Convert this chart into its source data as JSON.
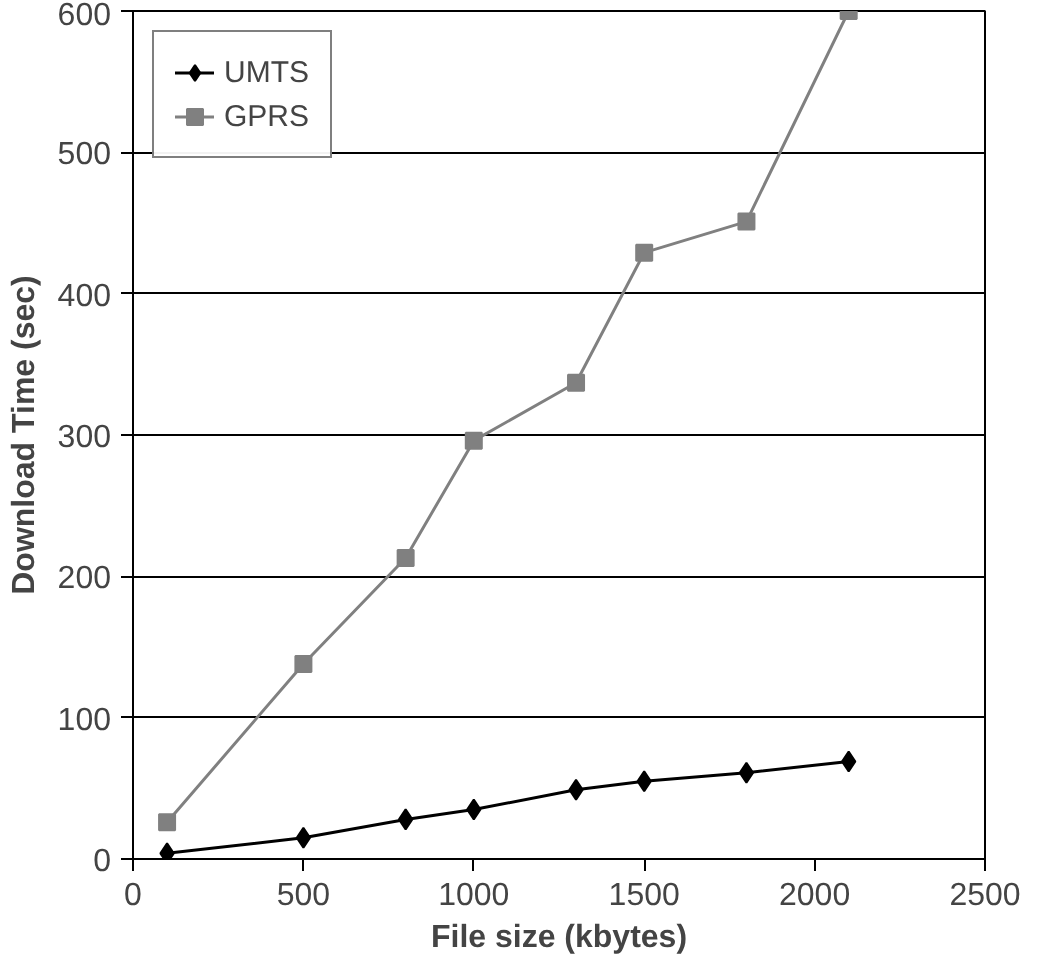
{
  "chart_data": {
    "type": "line",
    "xlabel": "File size (kbytes)",
    "ylabel": "Download Time (sec)",
    "x": [
      100,
      500,
      800,
      1000,
      1300,
      1500,
      1800,
      2100
    ],
    "series": [
      {
        "name": "UMTS",
        "color": "#000000",
        "marker": "diamond",
        "values": [
          4,
          15,
          28,
          35,
          49,
          55,
          61,
          69
        ]
      },
      {
        "name": "GPRS",
        "color": "#808080",
        "marker": "square",
        "values": [
          26,
          138,
          213,
          296,
          337,
          429,
          451,
          600
        ]
      }
    ],
    "xlim": [
      0,
      2500
    ],
    "xticks": [
      0,
      500,
      1000,
      1500,
      2000,
      2500
    ],
    "ylim": [
      0,
      600
    ],
    "yticks": [
      0,
      100,
      200,
      300,
      400,
      500,
      600
    ],
    "grid": "y",
    "legend": "top left"
  }
}
